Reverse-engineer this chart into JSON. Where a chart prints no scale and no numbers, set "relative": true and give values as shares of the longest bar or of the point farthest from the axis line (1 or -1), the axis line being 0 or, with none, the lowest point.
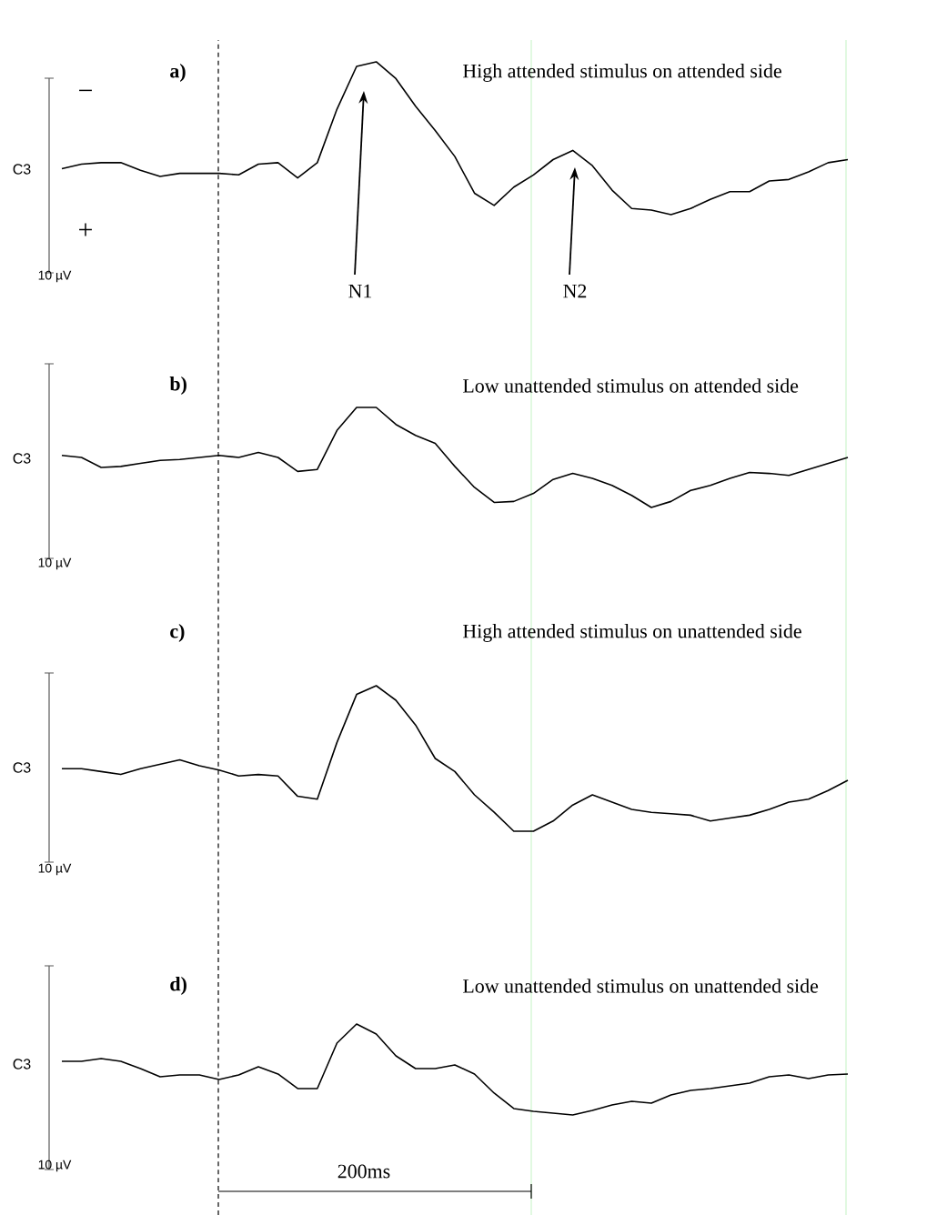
{
  "chart_data": [
    {
      "type": "line",
      "title": "a)",
      "subtitle": "High attended stimulus on attended side",
      "relative": true,
      "color": "#000000",
      "categories": [
        null,
        null,
        null,
        null,
        null,
        null,
        null,
        null,
        null,
        null,
        null,
        null,
        null,
        null,
        null,
        null,
        null,
        null,
        null,
        null,
        null,
        null,
        null,
        null,
        null,
        null,
        null,
        null,
        null,
        null,
        null,
        null,
        null,
        null,
        null,
        null,
        null,
        null,
        null,
        null,
        null
      ],
      "values": [
        0.3,
        0.33,
        0.34,
        0.34,
        0.29,
        0.25,
        0.27,
        0.27,
        0.27,
        0.26,
        0.33,
        0.34,
        0.24,
        0.34,
        0.69,
        0.97,
        1,
        0.89,
        0.71,
        0.55,
        0.38,
        0.14,
        0.06,
        0.18,
        0.26,
        0.36,
        0.42,
        0.32,
        0.16,
        0.04,
        0.03,
        0,
        0.04,
        0.1,
        0.15,
        0.15,
        0.22,
        0.23,
        0.28,
        0.34,
        0.36
      ],
      "annotations": [
        "C3",
        "10 µV",
        "−",
        "+",
        "N1",
        "N2"
      ]
    },
    {
      "type": "line",
      "title": "b)",
      "subtitle": "Low unattended stimulus on attended side",
      "relative": true,
      "color": "#000000",
      "categories": [
        null,
        null,
        null,
        null,
        null,
        null,
        null,
        null,
        null,
        null,
        null,
        null,
        null,
        null,
        null,
        null,
        null,
        null,
        null,
        null,
        null,
        null,
        null,
        null,
        null,
        null,
        null,
        null,
        null,
        null,
        null,
        null,
        null,
        null,
        null,
        null,
        null,
        null,
        null,
        null,
        null
      ],
      "values": [
        0.52,
        0.5,
        0.4,
        0.41,
        0.44,
        0.47,
        0.48,
        0.5,
        0.52,
        0.5,
        0.55,
        0.5,
        0.36,
        0.38,
        0.77,
        1,
        1,
        0.83,
        0.72,
        0.64,
        0.41,
        0.2,
        0.05,
        0.06,
        0.14,
        0.28,
        0.34,
        0.29,
        0.22,
        0.12,
        0,
        0.06,
        0.17,
        0.22,
        0.29,
        0.35,
        0.34,
        0.32,
        0.38,
        0.44,
        0.5
      ],
      "annotations": [
        "C3",
        "10 µV"
      ]
    },
    {
      "type": "line",
      "title": "c)",
      "subtitle": "High attended stimulus on unattended side",
      "relative": true,
      "color": "#000000",
      "categories": [
        null,
        null,
        null,
        null,
        null,
        null,
        null,
        null,
        null,
        null,
        null,
        null,
        null,
        null,
        null,
        null,
        null,
        null,
        null,
        null,
        null,
        null,
        null,
        null,
        null,
        null,
        null,
        null,
        null,
        null,
        null,
        null,
        null,
        null,
        null,
        null,
        null,
        null,
        null,
        null,
        null
      ],
      "values": [
        0.43,
        0.43,
        0.41,
        0.39,
        0.43,
        0.46,
        0.49,
        0.45,
        0.42,
        0.38,
        0.39,
        0.38,
        0.24,
        0.22,
        0.61,
        0.94,
        1,
        0.9,
        0.73,
        0.5,
        0.41,
        0.25,
        0.13,
        0,
        0,
        0.07,
        0.18,
        0.25,
        0.2,
        0.15,
        0.13,
        0.12,
        0.11,
        0.07,
        0.09,
        0.11,
        0.15,
        0.2,
        0.22,
        0.28,
        0.35
      ],
      "annotations": [
        "C3",
        "10 µV"
      ]
    },
    {
      "type": "line",
      "title": "d)",
      "subtitle": "Low unattended stimulus on unattended side",
      "relative": true,
      "color": "#000000",
      "categories": [
        null,
        null,
        null,
        null,
        null,
        null,
        null,
        null,
        null,
        null,
        null,
        null,
        null,
        null,
        null,
        null,
        null,
        null,
        null,
        null,
        null,
        null,
        null,
        null,
        null,
        null,
        null,
        null,
        null,
        null,
        null,
        null,
        null,
        null,
        null,
        null,
        null,
        null,
        null,
        null,
        null
      ],
      "values": [
        0.59,
        0.59,
        0.62,
        0.59,
        0.51,
        0.42,
        0.44,
        0.44,
        0.39,
        0.44,
        0.53,
        0.45,
        0.29,
        0.29,
        0.79,
        1,
        0.89,
        0.65,
        0.51,
        0.51,
        0.55,
        0.45,
        0.24,
        0.07,
        0.04,
        0.02,
        0,
        0.05,
        0.11,
        0.15,
        0.13,
        0.22,
        0.27,
        0.29,
        0.32,
        0.35,
        0.42,
        0.44,
        0.4,
        0.44,
        0.45
      ],
      "annotations": [
        "C3",
        "10 µV",
        "200ms"
      ]
    }
  ]
}
